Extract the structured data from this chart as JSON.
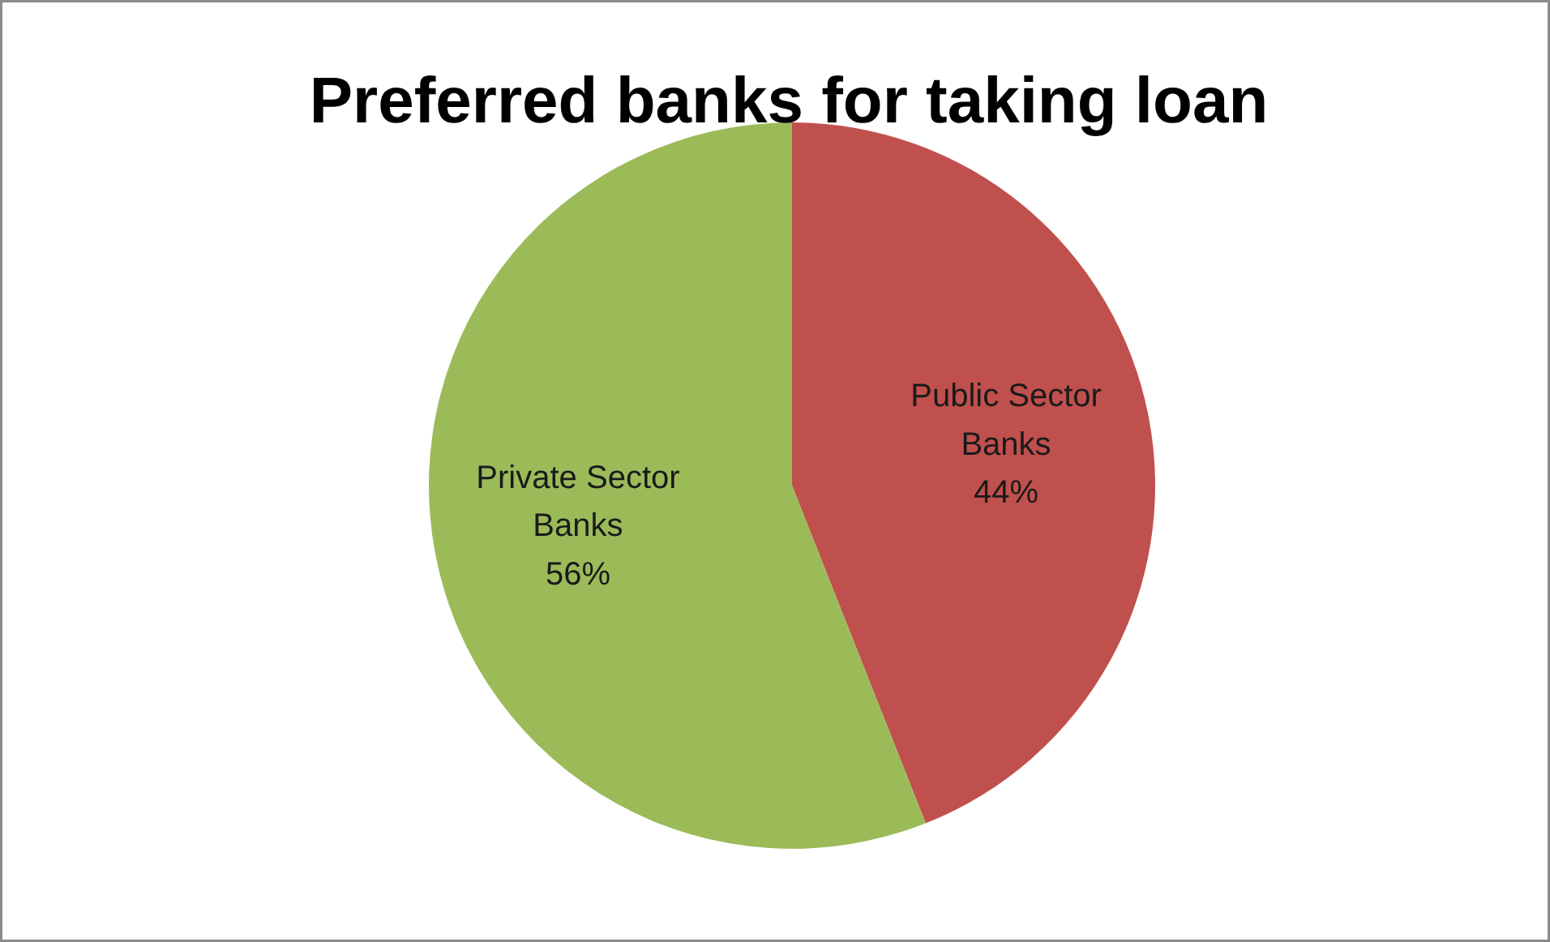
{
  "chart_data": {
    "type": "pie",
    "title": "Preferred banks for taking loan",
    "categories": [
      "Public Sector Banks",
      "Private Sector Banks"
    ],
    "values": [
      44,
      56
    ],
    "colors": [
      "#c0504d",
      "#9bbb59"
    ],
    "value_labels": [
      "44%",
      "56%"
    ]
  }
}
